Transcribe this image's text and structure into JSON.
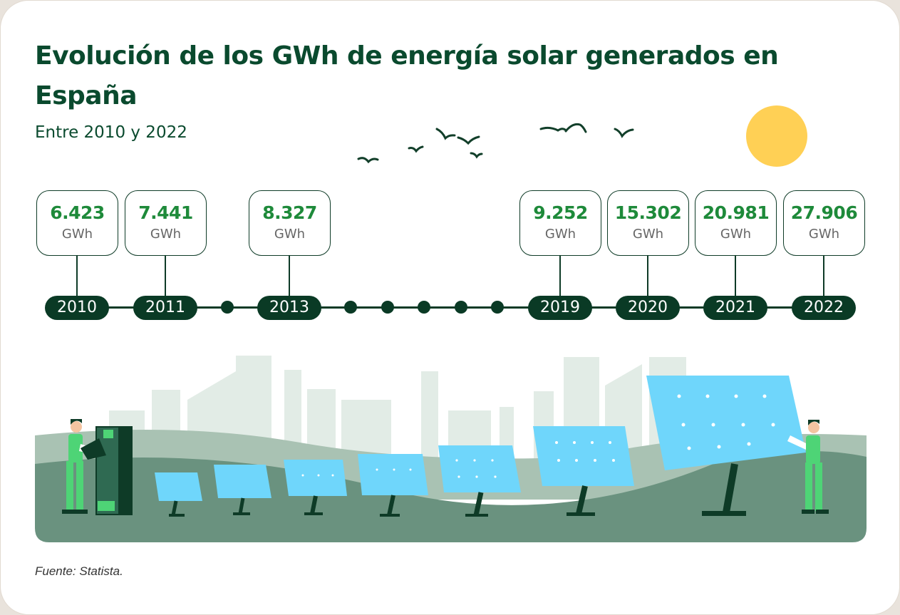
{
  "chart_data": {
    "type": "line",
    "title": "Evolución de los GWh de energía solar generados en España",
    "subtitle": "Entre 2010 y 2022",
    "unit": "GWh",
    "points": [
      {
        "year": "2010",
        "value_label": "6.423",
        "value": 6423
      },
      {
        "year": "2011",
        "value_label": "7.441",
        "value": 7441
      },
      {
        "year": "2013",
        "value_label": "8.327",
        "value": 8327
      },
      {
        "year": "2019",
        "value_label": "9.252",
        "value": 9252
      },
      {
        "year": "2020",
        "value_label": "15.302",
        "value": 15302
      },
      {
        "year": "2021",
        "value_label": "20.981",
        "value": 20981
      },
      {
        "year": "2022",
        "value_label": "27.906",
        "value": 27906
      }
    ],
    "source": "Fuente: Statista."
  },
  "colors": {
    "title": "#0a4a2e",
    "value_text": "#1e8a3a",
    "timeline": "#0a3a25",
    "sun": "#ffd055",
    "panel": "#6fd6fb",
    "ground": "#6a927f",
    "hills": "#a9c2b3",
    "city": "#e2ece6"
  },
  "icons": [
    "sun-icon",
    "bird-icon",
    "solar-panel-icon",
    "worker-icon",
    "inverter-icon"
  ]
}
